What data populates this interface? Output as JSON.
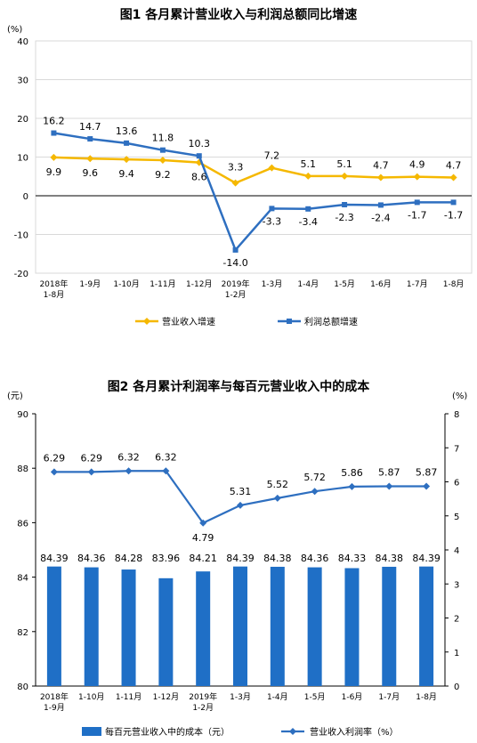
{
  "colors": {
    "revenue_line": "#f5b800",
    "profit_line": "#2e6fc0",
    "bar": "#1f6fc6",
    "rate_line": "#2e6fc0",
    "grid": "#d9d9d9",
    "axis": "#000000"
  },
  "chart_data": [
    {
      "type": "line",
      "title": "图1  各月累计营业收入与利润总额同比增速",
      "y_unit": "(%)",
      "ylim": [
        -20,
        40
      ],
      "yticks": [
        -20,
        -10,
        0,
        10,
        20,
        30,
        40
      ],
      "grid": true,
      "legend_position": "bottom",
      "categories": [
        [
          "2018年",
          "1-8月"
        ],
        [
          "1-9月"
        ],
        [
          "1-10月"
        ],
        [
          "1-11月"
        ],
        [
          "1-12月"
        ],
        [
          "2019年",
          "1-2月"
        ],
        [
          "1-3月"
        ],
        [
          "1-4月"
        ],
        [
          "1-5月"
        ],
        [
          "1-6月"
        ],
        [
          "1-7月"
        ],
        [
          "1-8月"
        ]
      ],
      "series": [
        {
          "name": "营业收入增速",
          "marker": "diamond",
          "values": [
            9.9,
            9.6,
            9.4,
            9.2,
            8.6,
            3.3,
            7.2,
            5.1,
            5.1,
            4.7,
            4.9,
            4.7
          ]
        },
        {
          "name": "利润总额增速",
          "marker": "square",
          "values": [
            16.2,
            14.7,
            13.6,
            11.8,
            10.3,
            -14.0,
            -3.3,
            -3.4,
            -2.3,
            -2.4,
            -1.7,
            -1.7
          ]
        }
      ]
    },
    {
      "type": "bar+line",
      "title": "图2  各月累计利润率与每百元营业收入中的成本",
      "left_unit": "(元)",
      "right_unit": "(%)",
      "ylim_left": [
        80,
        90
      ],
      "yticks_left": [
        80,
        82,
        84,
        86,
        88,
        90
      ],
      "ylim_right": [
        0,
        8
      ],
      "yticks_right": [
        0,
        1,
        2,
        3,
        4,
        5,
        6,
        7,
        8
      ],
      "grid": false,
      "legend_position": "bottom",
      "categories": [
        [
          "2018年",
          "1-9月"
        ],
        [
          "1-10月"
        ],
        [
          "1-11月"
        ],
        [
          "1-12月"
        ],
        [
          "2019年",
          "1-2月"
        ],
        [
          "1-3月"
        ],
        [
          "1-4月"
        ],
        [
          "1-5月"
        ],
        [
          "1-6月"
        ],
        [
          "1-7月"
        ],
        [
          "1-8月"
        ]
      ],
      "bar_series": {
        "name": "每百元营业收入中的成本（元）",
        "values": [
          84.39,
          84.36,
          84.28,
          83.96,
          84.21,
          84.39,
          84.38,
          84.36,
          84.33,
          84.38,
          84.39
        ]
      },
      "line_series": {
        "name": "营业收入利润率（%）",
        "values": [
          6.29,
          6.29,
          6.32,
          6.32,
          4.79,
          5.31,
          5.52,
          5.72,
          5.86,
          5.87,
          5.87
        ],
        "labels": [
          "6.29",
          "6.29",
          "6.32",
          "6.32",
          "4.79",
          "5.31",
          "5.52",
          "5.72",
          "5.86",
          "5.87",
          "5.87"
        ]
      }
    }
  ]
}
